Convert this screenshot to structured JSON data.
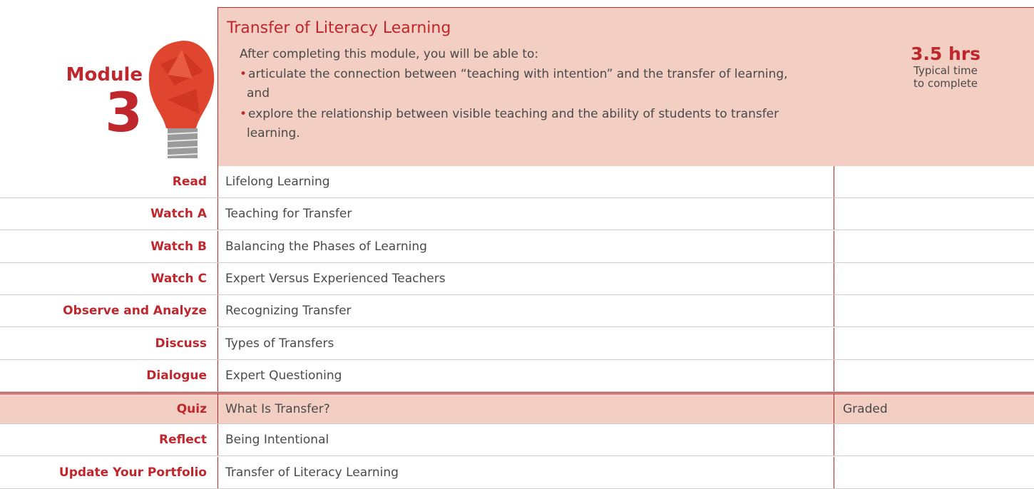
{
  "module": {
    "label": "Module",
    "number": "3"
  },
  "header": {
    "title": "Transfer of Literacy Learning",
    "intro": "After completing this module, you will be able to:",
    "objectives": [
      "articulate the connection between “teaching with intention” and the transfer of learning, and",
      "explore the relationship between visible teaching and the ability of students to transfer learning."
    ]
  },
  "time": {
    "value": "3.5 hrs",
    "caption": [
      "Typical time",
      "to complete"
    ]
  },
  "table": {
    "rows": [
      {
        "activity": "Read",
        "title": "Lifelong Learning"
      },
      {
        "activity": "Watch A",
        "title": "Teaching for Transfer"
      },
      {
        "activity": "Watch B",
        "title": "Balancing the Phases of Learning"
      },
      {
        "activity": "Watch C",
        "title": "Expert Versus Experienced Teachers"
      },
      {
        "activity": "Observe and Analyze",
        "title": "Recognizing Transfer"
      },
      {
        "activity": "Discuss",
        "title": "Types of Transfers"
      },
      {
        "activity": "Dialogue",
        "title": "Expert Questioning"
      },
      {
        "activity": "Quiz",
        "title": "What Is Transfer?",
        "status": "Graded",
        "highlight": true
      },
      {
        "activity": "Reflect",
        "title": "Being Intentional"
      },
      {
        "activity": "Update Your Portfolio",
        "title": "Transfer of Literacy Learning"
      }
    ]
  }
}
